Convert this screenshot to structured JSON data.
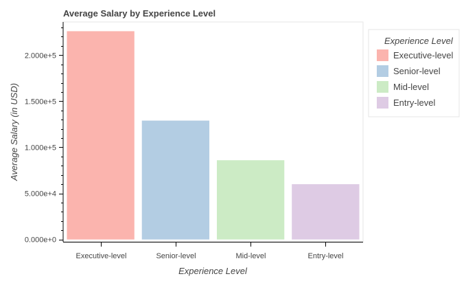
{
  "chart_data": {
    "type": "bar",
    "title": "Average Salary by Experience Level",
    "xlabel": "Experience Level",
    "ylabel": "Average Salary (in USD)",
    "categories": [
      "Executive-level",
      "Senior-level",
      "Mid-level",
      "Entry-level"
    ],
    "values": [
      226000,
      129000,
      86000,
      60000
    ],
    "colors": [
      "#fbb4ae",
      "#b3cde3",
      "#ccebc5",
      "#decbe4"
    ],
    "ylim": [
      -2500,
      236000
    ],
    "yticks": [
      0,
      50000,
      100000,
      150000,
      200000
    ],
    "ytick_labels": [
      "0.000e+0",
      "5.000e+4",
      "1.000e+5",
      "1.500e+5",
      "2.000e+5"
    ],
    "grid": false,
    "legend": {
      "title": "Experience Level",
      "placement": "right",
      "entries": [
        "Executive-level",
        "Senior-level",
        "Mid-level",
        "Entry-level"
      ]
    }
  }
}
